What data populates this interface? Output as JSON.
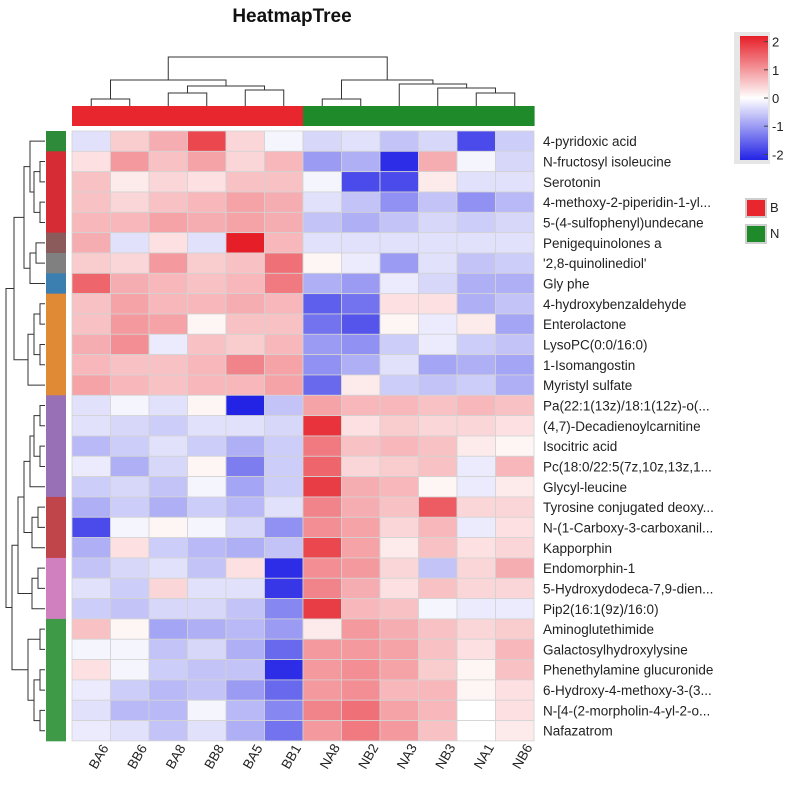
{
  "chart_data": {
    "type": "heatmap",
    "title": "HeatmapTree",
    "columns": [
      "BA6",
      "BB6",
      "BA8",
      "BB8",
      "BA5",
      "BB1",
      "NA8",
      "NB2",
      "NA3",
      "NB3",
      "NA1",
      "NB6"
    ],
    "column_groups": [
      "B",
      "B",
      "B",
      "B",
      "B",
      "B",
      "N",
      "N",
      "N",
      "N",
      "N",
      "N"
    ],
    "rows": [
      "4-pyridoxic acid",
      "N-fructosyl isoleucine",
      "Serotonin",
      "4-methoxy-2-piperidin-1-yl...",
      "5-(4-sulfophenyl)undecane",
      "Penigequinolones a",
      "'2,8-quinolinediol'",
      "Gly phe",
      "4-hydroxybenzaldehyde",
      "Enterolactone",
      "LysoPC(0:0/16:0)",
      "1-Isomangostin",
      "Myristyl sulfate",
      "Pa(22:1(13z)/18:1(12z)-o(...",
      "(4,7)-Decadienoylcarnitine",
      "Isocitric acid",
      "Pc(18:0/22:5(7z,10z,13z,1...",
      "Glycyl-leucine",
      "Tyrosine conjugated deoxy...",
      "N-(1-Carboxy-3-carboxanil...",
      "Kapporphin",
      "Endomorphin-1",
      "5-Hydroxydodeca-7,9-dien...",
      "Pip2(16:1(9z)/16:0)",
      "Aminoglutethimide",
      "Galactosylhydroxylysine",
      "Phenethylamine glucuronide",
      "6-Hydroxy-4-methoxy-3-(3...",
      "N-[4-(2-morpholin-4-yl-2-o...",
      "Nafazatrom"
    ],
    "row_cluster_colors": [
      "#2e8b3a",
      "#d62c35",
      "#d62c35",
      "#d62c35",
      "#d62c35",
      "#8b5a5a",
      "#808080",
      "#3a7fb0",
      "#e08a35",
      "#e08a35",
      "#e08a35",
      "#e08a35",
      "#e08a35",
      "#9770b5",
      "#9770b5",
      "#9770b5",
      "#9770b5",
      "#9770b5",
      "#c0454a",
      "#c0454a",
      "#c0454a",
      "#d07fbf",
      "#d07fbf",
      "#d07fbf",
      "#3f9a48",
      "#3f9a48",
      "#3f9a48",
      "#3f9a48",
      "#3f9a48",
      "#3f9a48"
    ],
    "values": [
      [
        -0.3,
        0.5,
        0.8,
        1.8,
        0.4,
        -0.1,
        -0.4,
        -0.3,
        -0.6,
        -0.4,
        -1.8,
        -0.5
      ],
      [
        0.3,
        1.0,
        0.6,
        0.9,
        0.4,
        0.7,
        -1.0,
        -0.8,
        -2.1,
        0.8,
        -0.1,
        -0.4
      ],
      [
        0.6,
        0.2,
        0.4,
        0.3,
        0.6,
        0.6,
        -0.1,
        -1.8,
        -1.8,
        0.2,
        -0.3,
        -0.3
      ],
      [
        0.6,
        0.4,
        0.6,
        0.7,
        0.9,
        0.8,
        -0.3,
        -0.6,
        -1.1,
        -0.6,
        -1.1,
        -0.7
      ],
      [
        0.7,
        0.7,
        0.9,
        0.8,
        0.9,
        0.8,
        -0.6,
        -0.8,
        -0.6,
        -0.4,
        -0.5,
        -0.4
      ],
      [
        0.8,
        -0.3,
        0.3,
        -0.3,
        2.2,
        0.7,
        -0.3,
        -0.3,
        -0.3,
        -0.3,
        -0.3,
        -0.3
      ],
      [
        0.5,
        0.4,
        1.0,
        0.5,
        0.6,
        1.4,
        0.1,
        -0.2,
        -1.0,
        -0.3,
        -0.6,
        -0.5
      ],
      [
        1.5,
        0.8,
        0.7,
        0.6,
        0.7,
        1.3,
        -0.8,
        -1.0,
        -0.2,
        -0.4,
        -0.8,
        -0.8
      ],
      [
        0.6,
        0.9,
        0.7,
        0.7,
        0.8,
        0.7,
        -1.6,
        -1.4,
        0.3,
        0.3,
        -0.8,
        -0.6
      ],
      [
        0.6,
        1.0,
        0.9,
        0.1,
        0.6,
        0.6,
        -1.4,
        -1.7,
        0.1,
        -0.2,
        0.2,
        -0.9
      ],
      [
        0.8,
        1.1,
        -0.2,
        0.6,
        0.5,
        0.7,
        -1.0,
        -1.1,
        -0.5,
        -0.2,
        -0.5,
        -0.6
      ],
      [
        0.7,
        0.6,
        0.6,
        0.7,
        1.2,
        0.9,
        -1.1,
        -0.8,
        -0.3,
        -0.9,
        -0.8,
        -0.9
      ],
      [
        0.9,
        0.7,
        0.6,
        0.7,
        0.7,
        0.9,
        -1.5,
        0.2,
        -0.5,
        -0.6,
        -0.5,
        -0.8
      ],
      [
        -0.3,
        -0.1,
        -0.3,
        0.1,
        -2.2,
        -0.6,
        0.9,
        0.7,
        0.7,
        0.6,
        0.7,
        0.6
      ],
      [
        -0.3,
        -0.4,
        -0.5,
        -0.3,
        -0.3,
        -0.4,
        2.0,
        0.3,
        0.5,
        0.4,
        0.4,
        0.3
      ],
      [
        -0.7,
        -0.5,
        -0.3,
        -0.5,
        -0.8,
        -0.5,
        1.3,
        0.6,
        0.7,
        0.6,
        0.2,
        0.1
      ],
      [
        -0.2,
        -0.8,
        -0.4,
        0.1,
        -1.3,
        -0.5,
        1.5,
        0.4,
        0.5,
        0.6,
        -0.2,
        0.7
      ],
      [
        -0.5,
        -0.4,
        -0.6,
        -0.1,
        -0.9,
        -0.5,
        1.9,
        0.8,
        0.7,
        0.1,
        -0.2,
        0.2
      ],
      [
        -0.8,
        -0.5,
        -0.8,
        -0.5,
        -0.7,
        -0.3,
        1.2,
        0.8,
        0.6,
        1.6,
        0.4,
        0.4
      ],
      [
        -1.8,
        -0.1,
        0.1,
        -0.1,
        -0.4,
        -1.1,
        1.1,
        0.9,
        0.4,
        0.7,
        -0.2,
        0.3
      ],
      [
        -0.8,
        0.3,
        -0.5,
        -0.7,
        -0.8,
        -0.6,
        1.8,
        0.9,
        0.2,
        0.6,
        0.3,
        0.4
      ],
      [
        -0.6,
        -0.4,
        -0.3,
        -0.6,
        0.3,
        -2.1,
        1.1,
        1.0,
        0.4,
        -0.6,
        0.4,
        0.8
      ],
      [
        -0.3,
        -0.5,
        0.4,
        -0.3,
        -0.3,
        -2.0,
        1.2,
        0.8,
        0.3,
        0.6,
        0.4,
        0.4
      ],
      [
        -0.5,
        -0.6,
        -0.4,
        -0.4,
        -0.6,
        -1.2,
        1.9,
        0.7,
        0.6,
        -0.1,
        -0.2,
        -0.2
      ],
      [
        0.6,
        0.1,
        -0.9,
        -0.8,
        -0.7,
        -1.0,
        0.2,
        1.0,
        0.8,
        0.6,
        0.4,
        0.5
      ],
      [
        -0.1,
        -0.1,
        -0.6,
        -0.4,
        -0.8,
        -1.5,
        1.0,
        1.0,
        0.9,
        0.6,
        0.3,
        0.7
      ],
      [
        0.3,
        -0.1,
        -0.5,
        -0.6,
        -0.6,
        -2.1,
        1.0,
        1.1,
        0.9,
        0.5,
        0.1,
        0.6
      ],
      [
        -0.2,
        -0.5,
        -0.7,
        -0.6,
        -1.0,
        -1.5,
        1.0,
        1.1,
        0.7,
        0.7,
        0.1,
        0.3
      ],
      [
        -0.3,
        -0.7,
        -0.7,
        -0.1,
        -0.7,
        -1.2,
        1.2,
        1.4,
        0.9,
        0.7,
        0.0,
        0.3
      ],
      [
        -0.2,
        -0.3,
        -0.6,
        -0.3,
        -0.8,
        -1.4,
        1.0,
        1.3,
        1.0,
        0.6,
        0.0,
        0.2
      ]
    ],
    "color_scale": {
      "min": -2.2,
      "max": 2.2,
      "low_color": "#2323e6",
      "mid_color": "#ffffff",
      "high_color": "#e61e28",
      "ticks": [
        2,
        1,
        0,
        -1,
        -2
      ]
    },
    "legend": [
      {
        "label": "B",
        "color": "#e8262d"
      },
      {
        "label": "N",
        "color": "#1f8a2a"
      }
    ]
  }
}
